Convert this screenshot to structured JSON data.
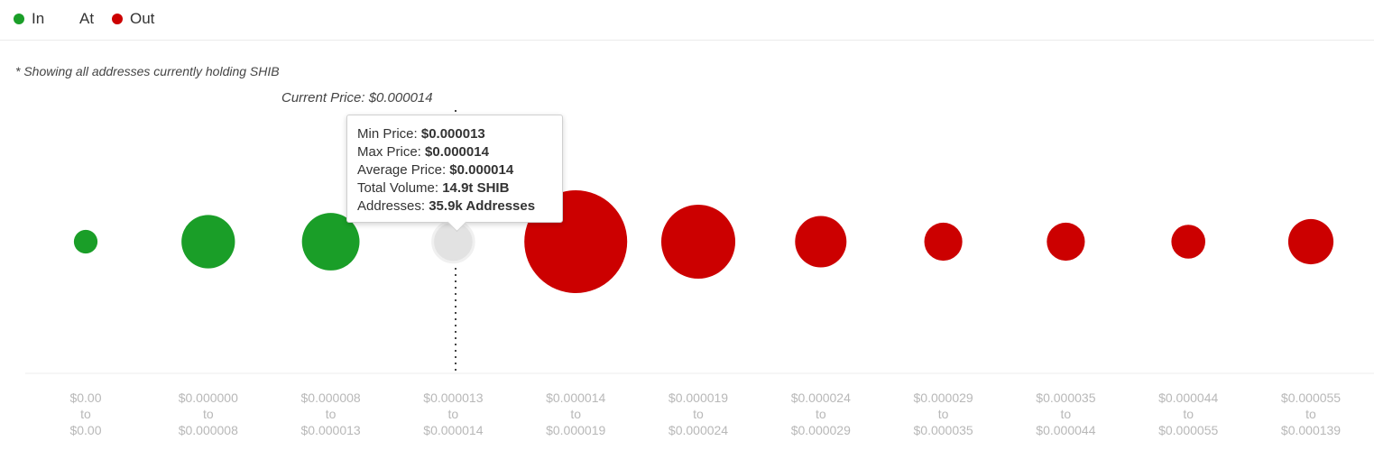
{
  "legend": [
    {
      "label": "In",
      "color": "#1a9e28"
    },
    {
      "label": "At",
      "color": ""
    },
    {
      "label": "Out",
      "color": "#cc0000"
    }
  ],
  "note": "* Showing all addresses currently holding SHIB",
  "current_price_label": "Current Price: $0.000014",
  "tooltip": {
    "rows": [
      {
        "label": "Min Price: ",
        "value": "$0.000013"
      },
      {
        "label": "Max Price: ",
        "value": "$0.000014"
      },
      {
        "label": "Average Price: ",
        "value": "$0.000014"
      },
      {
        "label": "Total Volume: ",
        "value": "14.9t SHIB"
      },
      {
        "label": "Addresses: ",
        "value": "35.9k Addresses"
      }
    ]
  },
  "chart_data": {
    "type": "scatter",
    "title": "",
    "xlabel": "",
    "ylabel": "",
    "grid": false,
    "legend_position": "top-left",
    "categories": [
      [
        "$0.00",
        "to",
        "$0.00"
      ],
      [
        "$0.000000",
        "to",
        "$0.000008"
      ],
      [
        "$0.000008",
        "to",
        "$0.000013"
      ],
      [
        "$0.000013",
        "to",
        "$0.000014"
      ],
      [
        "$0.000014",
        "to",
        "$0.000019"
      ],
      [
        "$0.000019",
        "to",
        "$0.000024"
      ],
      [
        "$0.000024",
        "to",
        "$0.000029"
      ],
      [
        "$0.000029",
        "to",
        "$0.000035"
      ],
      [
        "$0.000035",
        "to",
        "$0.000044"
      ],
      [
        "$0.000044",
        "to",
        "$0.000055"
      ],
      [
        "$0.000055",
        "to",
        "$0.000139"
      ]
    ],
    "status": [
      "In",
      "In",
      "In",
      "At",
      "Out",
      "Out",
      "Out",
      "Out",
      "Out",
      "Out",
      "Out"
    ],
    "relative_size": [
      0.23,
      0.52,
      0.56,
      0.4,
      1.0,
      0.72,
      0.5,
      0.37,
      0.37,
      0.33,
      0.44
    ],
    "colors": {
      "In": "#1a9e28",
      "At": "#e2e2e2",
      "Out": "#cc0000"
    },
    "current_price_category_index": 3
  }
}
